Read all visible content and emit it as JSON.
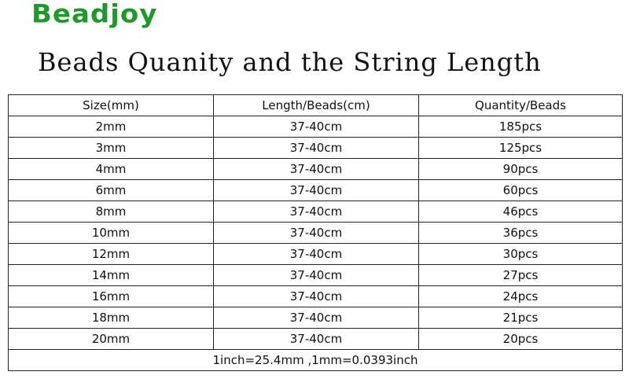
{
  "brand": {
    "logo_text": "Beadjoy",
    "color": "#1f9a2a"
  },
  "title": "Beads Quanity and the String Length",
  "table": {
    "headers": [
      "Size(mm)",
      "Length/Beads(cm)",
      "Quantity/Beads"
    ],
    "rows": [
      [
        "2mm",
        "37-40cm",
        "185pcs"
      ],
      [
        "3mm",
        "37-40cm",
        "125pcs"
      ],
      [
        "4mm",
        "37-40cm",
        "90pcs"
      ],
      [
        "6mm",
        "37-40cm",
        "60pcs"
      ],
      [
        "8mm",
        "37-40cm",
        "46pcs"
      ],
      [
        "10mm",
        "37-40cm",
        "36pcs"
      ],
      [
        "12mm",
        "37-40cm",
        "30pcs"
      ],
      [
        "14mm",
        "37-40cm",
        "27pcs"
      ],
      [
        "16mm",
        "37-40cm",
        "24pcs"
      ],
      [
        "18mm",
        "37-40cm",
        "21pcs"
      ],
      [
        "20mm",
        "37-40cm",
        "20pcs"
      ]
    ],
    "footer": "1inch=25.4mm ,1mm=0.0393inch"
  }
}
